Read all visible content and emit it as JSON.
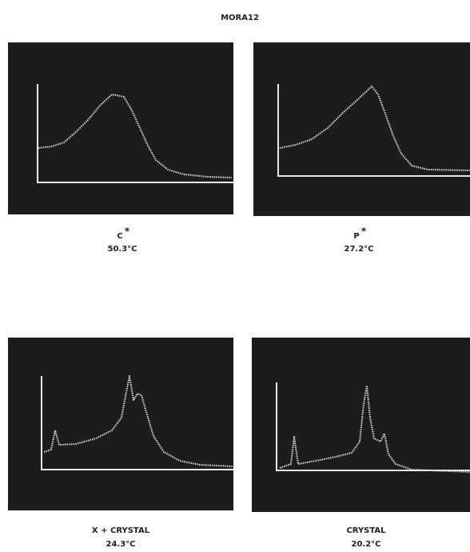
{
  "title": "MORA12",
  "panels": [
    {
      "label": "C",
      "superscript": "*",
      "temperature": "50.3°C"
    },
    {
      "label": "P",
      "superscript": "*",
      "temperature": "27.2°C"
    },
    {
      "label": "X + CRYSTAL",
      "temperature": "24.3°C"
    },
    {
      "label": "CRYSTAL",
      "temperature": "20.2°C"
    }
  ]
}
